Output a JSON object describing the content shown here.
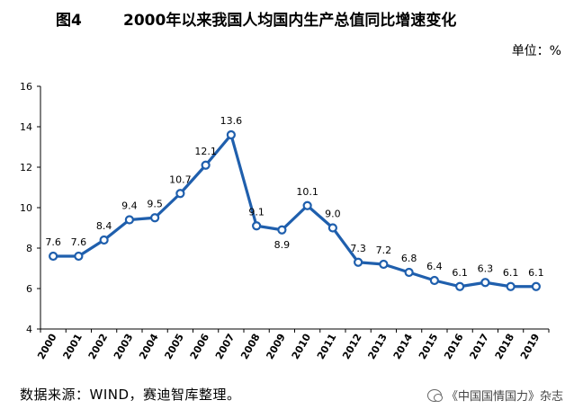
{
  "header": {
    "figure_number": "图4",
    "title": "2000年以来我国人均国内生产总值同比增速变化",
    "unit": "单位：%"
  },
  "footer": {
    "source": "数据来源：WIND，赛迪智库整理。",
    "watermark": "《中国国情国力》杂志"
  },
  "colors": {
    "line": "#1f5fad",
    "marker_fill": "#ffffff",
    "axis": "#000000"
  },
  "chart_data": {
    "type": "line",
    "title": "2000年以来我国人均国内生产总值同比增速变化",
    "xlabel": "",
    "ylabel": "",
    "categories": [
      "2000",
      "2001",
      "2002",
      "2003",
      "2004",
      "2005",
      "2006",
      "2007",
      "2008",
      "2009",
      "2010",
      "2011",
      "2012",
      "2013",
      "2014",
      "2015",
      "2016",
      "2017",
      "2018",
      "2019"
    ],
    "values": [
      7.6,
      7.6,
      8.4,
      9.4,
      9.5,
      10.7,
      12.1,
      13.6,
      9.1,
      8.9,
      10.1,
      9.0,
      7.3,
      7.2,
      6.8,
      6.4,
      6.1,
      6.3,
      6.1,
      6.1
    ],
    "labels": [
      "7.6",
      "7.6",
      "8.4",
      "9.4",
      "9.5",
      "10.7",
      "12.1",
      "13.6",
      "9.1",
      "8.9",
      "10.1",
      "9.0",
      "7.3",
      "7.2",
      "6.8",
      "6.4",
      "6.1",
      "6.3",
      "6.1",
      "6.1"
    ],
    "ylim": [
      4,
      16
    ],
    "yticks": [
      "4",
      "6",
      "8",
      "10",
      "12",
      "14",
      "16"
    ],
    "grid": false,
    "legend": "none"
  }
}
